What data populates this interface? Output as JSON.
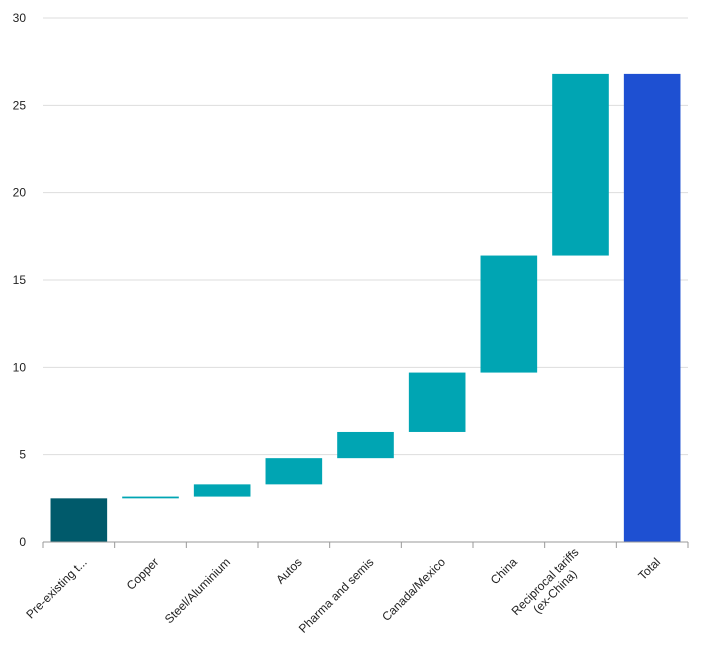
{
  "chart_data": {
    "type": "bar",
    "subtype": "waterfall",
    "title": "",
    "xlabel": "",
    "ylabel": "",
    "ylim": [
      0,
      30
    ],
    "yticks": [
      0,
      5,
      10,
      15,
      20,
      25,
      30
    ],
    "grid": true,
    "legend": "none",
    "categories": [
      {
        "label": "Pre-existing t...",
        "lines": [
          "Pre-existing t..."
        ],
        "kind": "base"
      },
      {
        "label": "Copper",
        "lines": [
          "Copper"
        ],
        "kind": "step"
      },
      {
        "label": "Steel/Aluminium",
        "lines": [
          "Steel/Aluminium"
        ],
        "kind": "step"
      },
      {
        "label": "Autos",
        "lines": [
          "Autos"
        ],
        "kind": "step"
      },
      {
        "label": "Pharma and semis",
        "lines": [
          "Pharma and semis"
        ],
        "kind": "step"
      },
      {
        "label": "Canada/Mexico",
        "lines": [
          "Canada/Mexico"
        ],
        "kind": "step"
      },
      {
        "label": "China",
        "lines": [
          "China"
        ],
        "kind": "step"
      },
      {
        "label": "Reciprocal tariffs (ex-China)",
        "lines": [
          "Reciprocal tariffs",
          "(ex-China)"
        ],
        "kind": "step"
      },
      {
        "label": "Total",
        "lines": [
          "Total"
        ],
        "kind": "total"
      }
    ],
    "bars": [
      {
        "start": 0,
        "end": 2.5
      },
      {
        "start": 2.5,
        "end": 2.6
      },
      {
        "start": 2.6,
        "end": 3.3
      },
      {
        "start": 3.3,
        "end": 4.8
      },
      {
        "start": 4.8,
        "end": 6.3
      },
      {
        "start": 6.3,
        "end": 9.7
      },
      {
        "start": 9.7,
        "end": 16.4
      },
      {
        "start": 16.4,
        "end": 26.8
      },
      {
        "start": 0,
        "end": 26.8
      }
    ],
    "colors": {
      "base": "#005a6b",
      "step": "#00a5b3",
      "total": "#1e50d2",
      "grid": "#dddddd",
      "axis": "#999999"
    }
  }
}
